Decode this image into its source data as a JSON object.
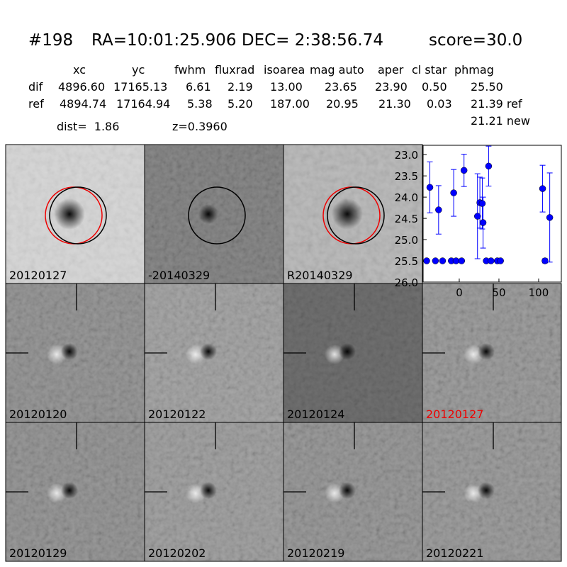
{
  "header": {
    "id": "#198",
    "coords": "RA=10:01:25.906 DEC= 2:38:56.74",
    "score": "score=30.0",
    "dist": "dist=  1.86",
    "z": "z=0.3960"
  },
  "table": {
    "columns": [
      "xc",
      "yc",
      "fwhm",
      "fluxrad",
      "isoarea",
      "mag auto",
      "aper",
      "cl star",
      "phmag"
    ],
    "rows": [
      [
        "dif",
        "4896.60",
        "17165.13",
        "6.61",
        "2.19",
        "13.00",
        "23.65",
        "23.90",
        "0.50",
        "25.50"
      ],
      [
        "ref",
        "4894.74",
        "17164.94",
        "5.38",
        "5.20",
        "187.00",
        "20.95",
        "21.30",
        "0.03",
        "21.39 ref"
      ]
    ],
    "extra": "21.21 new"
  },
  "stamps": [
    {
      "label": "20120127"
    },
    {
      "label": "-20140329"
    },
    {
      "label": "R20140329"
    },
    {
      "label": "20120120"
    },
    {
      "label": "20120122"
    },
    {
      "label": "20120124"
    },
    {
      "label": "20120127"
    },
    {
      "label": "20120129"
    },
    {
      "label": "20120202"
    },
    {
      "label": "20120219"
    },
    {
      "label": "20120221"
    }
  ],
  "chart_data": {
    "type": "errorbar",
    "x": [
      -41,
      -37,
      -30,
      -26,
      -21,
      -10,
      -7,
      -4,
      3,
      6,
      23,
      26,
      29,
      30,
      34,
      37,
      40,
      48,
      52,
      105,
      108,
      114
    ],
    "series": [
      {
        "color": "#0000ff",
        "values": [
          25.5,
          23.77,
          25.5,
          24.3,
          25.5,
          25.5,
          23.9,
          25.5,
          25.5,
          23.37,
          24.45,
          24.13,
          24.15,
          24.6,
          25.5,
          23.27,
          25.5,
          25.5,
          25.5,
          23.8,
          25.5,
          24.48
        ],
        "errors": [
          0,
          0.6,
          0,
          0.57,
          0,
          0,
          0.55,
          0,
          0,
          0.38,
          1.0,
          0.6,
          0.6,
          0.6,
          0,
          0.47,
          0,
          0,
          0,
          0.55,
          0.05,
          1.05
        ]
      }
    ],
    "xlim": [
      -45.5,
      128.6
    ],
    "ylim": [
      26.0,
      22.78
    ],
    "xticks": [
      0,
      50,
      100
    ],
    "yticks": [
      {
        "value": 23,
        "label": "23.0"
      },
      23.5,
      {
        "value": 24,
        "label": "24.0"
      },
      24.5,
      {
        "value": 25,
        "label": "25.0"
      },
      25.5,
      {
        "value": 26,
        "label": "26.0"
      }
    ]
  }
}
